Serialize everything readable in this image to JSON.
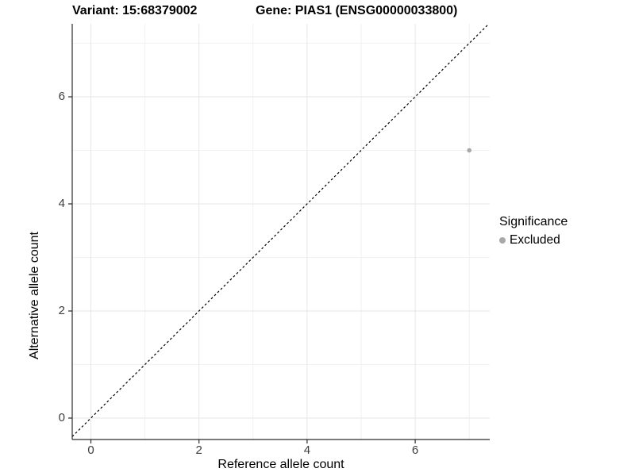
{
  "titles": {
    "variant": "Variant: 15:68379002",
    "gene": "Gene: PIAS1 (ENSG00000033800)"
  },
  "axes": {
    "x": {
      "label": "Reference allele count",
      "tick_labels": [
        "0",
        "2",
        "4",
        "6"
      ]
    },
    "y": {
      "label": "Alternative allele count",
      "tick_labels": [
        "0",
        "2",
        "4",
        "6"
      ]
    }
  },
  "legend": {
    "title": "Significance",
    "items": [
      {
        "label": "Excluded",
        "color": "#a8a8a8"
      }
    ]
  },
  "colors": {
    "point": "#a8a8a8",
    "grid_major": "#e6e6e6",
    "grid_minor": "#f1f1f1",
    "axis_line": "#2a2a2a",
    "reference_line": "#000000"
  },
  "chart_data": {
    "type": "scatter",
    "title_left": "Variant: 15:68379002",
    "title_right": "Gene: PIAS1 (ENSG00000033800)",
    "xlabel": "Reference allele count",
    "ylabel": "Alternative allele count",
    "xlim": [
      -0.37,
      7.37
    ],
    "ylim": [
      -0.4,
      7.36
    ],
    "x_major_ticks": [
      0,
      2,
      4,
      6
    ],
    "y_major_ticks": [
      0,
      2,
      4,
      6
    ],
    "x_minor_gridlines": [
      1,
      3,
      5,
      7
    ],
    "y_minor_gridlines": [
      1,
      3,
      5,
      7
    ],
    "grid": true,
    "legend_position": "right",
    "series": [
      {
        "name": "Excluded",
        "color": "#a8a8a8",
        "points": [
          {
            "x": 7,
            "y": 5
          }
        ]
      }
    ],
    "reference_line": {
      "slope": 1,
      "intercept": 0,
      "style": "dashed",
      "color": "#000000"
    }
  }
}
